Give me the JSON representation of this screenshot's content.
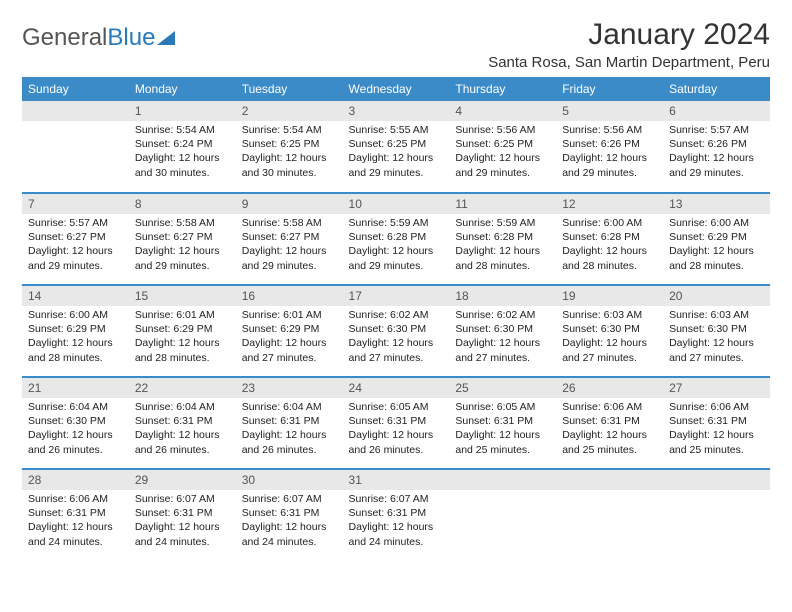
{
  "logo": {
    "text_gray": "General",
    "text_blue": "Blue"
  },
  "title": "January 2024",
  "location": "Santa Rosa, San Martin Department, Peru",
  "colors": {
    "header_bg": "#3b8bc9",
    "header_text": "#ffffff",
    "daynum_bg": "#e8e8e8",
    "row_divider": "#3b8bc9",
    "body_text": "#222222",
    "logo_gray": "#555555",
    "logo_blue": "#2a7ab9"
  },
  "typography": {
    "title_fontsize": 30,
    "location_fontsize": 15,
    "weekday_fontsize": 12,
    "daynum_fontsize": 12,
    "body_fontsize": 10.5
  },
  "weekdays": [
    "Sunday",
    "Monday",
    "Tuesday",
    "Wednesday",
    "Thursday",
    "Friday",
    "Saturday"
  ],
  "weeks": [
    [
      {
        "n": "",
        "sunrise": "",
        "sunset": "",
        "daylight": ""
      },
      {
        "n": "1",
        "sunrise": "5:54 AM",
        "sunset": "6:24 PM",
        "daylight": "12 hours and 30 minutes."
      },
      {
        "n": "2",
        "sunrise": "5:54 AM",
        "sunset": "6:25 PM",
        "daylight": "12 hours and 30 minutes."
      },
      {
        "n": "3",
        "sunrise": "5:55 AM",
        "sunset": "6:25 PM",
        "daylight": "12 hours and 29 minutes."
      },
      {
        "n": "4",
        "sunrise": "5:56 AM",
        "sunset": "6:25 PM",
        "daylight": "12 hours and 29 minutes."
      },
      {
        "n": "5",
        "sunrise": "5:56 AM",
        "sunset": "6:26 PM",
        "daylight": "12 hours and 29 minutes."
      },
      {
        "n": "6",
        "sunrise": "5:57 AM",
        "sunset": "6:26 PM",
        "daylight": "12 hours and 29 minutes."
      }
    ],
    [
      {
        "n": "7",
        "sunrise": "5:57 AM",
        "sunset": "6:27 PM",
        "daylight": "12 hours and 29 minutes."
      },
      {
        "n": "8",
        "sunrise": "5:58 AM",
        "sunset": "6:27 PM",
        "daylight": "12 hours and 29 minutes."
      },
      {
        "n": "9",
        "sunrise": "5:58 AM",
        "sunset": "6:27 PM",
        "daylight": "12 hours and 29 minutes."
      },
      {
        "n": "10",
        "sunrise": "5:59 AM",
        "sunset": "6:28 PM",
        "daylight": "12 hours and 29 minutes."
      },
      {
        "n": "11",
        "sunrise": "5:59 AM",
        "sunset": "6:28 PM",
        "daylight": "12 hours and 28 minutes."
      },
      {
        "n": "12",
        "sunrise": "6:00 AM",
        "sunset": "6:28 PM",
        "daylight": "12 hours and 28 minutes."
      },
      {
        "n": "13",
        "sunrise": "6:00 AM",
        "sunset": "6:29 PM",
        "daylight": "12 hours and 28 minutes."
      }
    ],
    [
      {
        "n": "14",
        "sunrise": "6:00 AM",
        "sunset": "6:29 PM",
        "daylight": "12 hours and 28 minutes."
      },
      {
        "n": "15",
        "sunrise": "6:01 AM",
        "sunset": "6:29 PM",
        "daylight": "12 hours and 28 minutes."
      },
      {
        "n": "16",
        "sunrise": "6:01 AM",
        "sunset": "6:29 PM",
        "daylight": "12 hours and 27 minutes."
      },
      {
        "n": "17",
        "sunrise": "6:02 AM",
        "sunset": "6:30 PM",
        "daylight": "12 hours and 27 minutes."
      },
      {
        "n": "18",
        "sunrise": "6:02 AM",
        "sunset": "6:30 PM",
        "daylight": "12 hours and 27 minutes."
      },
      {
        "n": "19",
        "sunrise": "6:03 AM",
        "sunset": "6:30 PM",
        "daylight": "12 hours and 27 minutes."
      },
      {
        "n": "20",
        "sunrise": "6:03 AM",
        "sunset": "6:30 PM",
        "daylight": "12 hours and 27 minutes."
      }
    ],
    [
      {
        "n": "21",
        "sunrise": "6:04 AM",
        "sunset": "6:30 PM",
        "daylight": "12 hours and 26 minutes."
      },
      {
        "n": "22",
        "sunrise": "6:04 AM",
        "sunset": "6:31 PM",
        "daylight": "12 hours and 26 minutes."
      },
      {
        "n": "23",
        "sunrise": "6:04 AM",
        "sunset": "6:31 PM",
        "daylight": "12 hours and 26 minutes."
      },
      {
        "n": "24",
        "sunrise": "6:05 AM",
        "sunset": "6:31 PM",
        "daylight": "12 hours and 26 minutes."
      },
      {
        "n": "25",
        "sunrise": "6:05 AM",
        "sunset": "6:31 PM",
        "daylight": "12 hours and 25 minutes."
      },
      {
        "n": "26",
        "sunrise": "6:06 AM",
        "sunset": "6:31 PM",
        "daylight": "12 hours and 25 minutes."
      },
      {
        "n": "27",
        "sunrise": "6:06 AM",
        "sunset": "6:31 PM",
        "daylight": "12 hours and 25 minutes."
      }
    ],
    [
      {
        "n": "28",
        "sunrise": "6:06 AM",
        "sunset": "6:31 PM",
        "daylight": "12 hours and 24 minutes."
      },
      {
        "n": "29",
        "sunrise": "6:07 AM",
        "sunset": "6:31 PM",
        "daylight": "12 hours and 24 minutes."
      },
      {
        "n": "30",
        "sunrise": "6:07 AM",
        "sunset": "6:31 PM",
        "daylight": "12 hours and 24 minutes."
      },
      {
        "n": "31",
        "sunrise": "6:07 AM",
        "sunset": "6:31 PM",
        "daylight": "12 hours and 24 minutes."
      },
      {
        "n": "",
        "sunrise": "",
        "sunset": "",
        "daylight": ""
      },
      {
        "n": "",
        "sunrise": "",
        "sunset": "",
        "daylight": ""
      },
      {
        "n": "",
        "sunrise": "",
        "sunset": "",
        "daylight": ""
      }
    ]
  ],
  "labels": {
    "sunrise": "Sunrise: ",
    "sunset": "Sunset: ",
    "daylight": "Daylight: "
  }
}
